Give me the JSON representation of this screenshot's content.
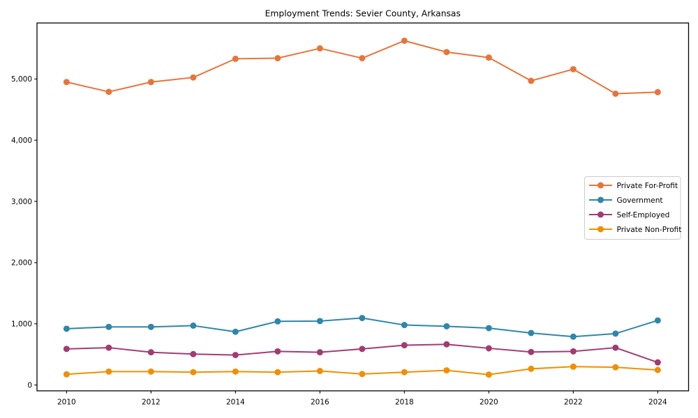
{
  "chart_data": {
    "type": "line",
    "title": "Employment Trends: Sevier County, Arkansas",
    "x": [
      2010,
      2011,
      2012,
      2013,
      2014,
      2015,
      2016,
      2017,
      2018,
      2019,
      2020,
      2021,
      2022,
      2023,
      2024
    ],
    "series": [
      {
        "name": "Private For-Profit",
        "color": "#E8743B",
        "values": [
          4950,
          4790,
          4950,
          5025,
          5330,
          5340,
          5500,
          5340,
          5625,
          5440,
          5350,
          4970,
          5160,
          4760,
          4785
        ]
      },
      {
        "name": "Government",
        "color": "#2E86AB",
        "values": [
          920,
          950,
          950,
          970,
          870,
          1040,
          1045,
          1095,
          980,
          960,
          930,
          850,
          790,
          840,
          1055
        ]
      },
      {
        "name": "Self-Employed",
        "color": "#A23B72",
        "values": [
          590,
          610,
          535,
          505,
          490,
          550,
          535,
          590,
          650,
          665,
          600,
          540,
          550,
          610,
          370
        ]
      },
      {
        "name": "Private Non-Profit",
        "color": "#F18F01",
        "values": [
          175,
          220,
          220,
          210,
          220,
          210,
          230,
          180,
          210,
          240,
          170,
          265,
          300,
          290,
          245
        ]
      }
    ],
    "xlabel": "",
    "ylabel": "",
    "xticks": [
      2010,
      2012,
      2014,
      2016,
      2018,
      2020,
      2022,
      2024
    ],
    "yticks": [
      0,
      1000,
      2000,
      3000,
      4000,
      5000
    ],
    "ytick_labels": [
      "0",
      "1,000",
      "2,000",
      "3,000",
      "4,000",
      "5,000"
    ],
    "xlim": [
      2009.3,
      2024.73
    ],
    "ylim": [
      -95,
      5915
    ],
    "grid": false,
    "legend_position": "center-right",
    "axis_color": "#000000",
    "background": "#ffffff"
  }
}
